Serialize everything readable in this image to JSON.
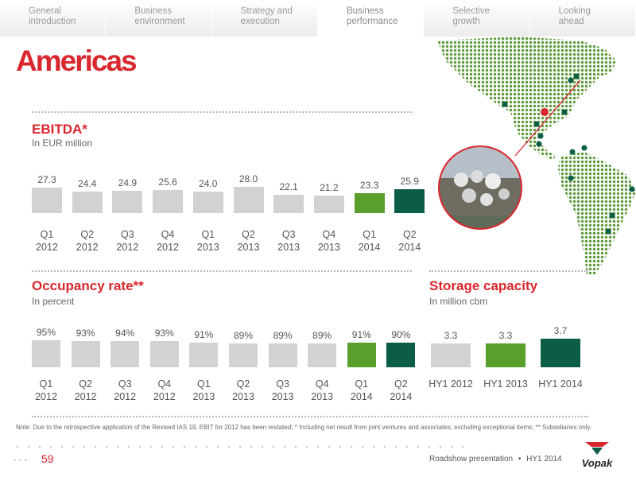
{
  "tabs": [
    {
      "line1": "General",
      "line2": "introduction"
    },
    {
      "line1": "Business",
      "line2": "environment"
    },
    {
      "line1": "Strategy and",
      "line2": "execution"
    },
    {
      "line1": "Business",
      "line2": "performance"
    },
    {
      "line1": "Selective",
      "line2": "growth"
    },
    {
      "line1": "Looking",
      "line2": "ahead"
    }
  ],
  "page_title": "Americas",
  "colors": {
    "grey": "#d2d2d2",
    "green": "#5a9e2b",
    "darkgreen": "#0b5d47",
    "red": "#d9272e"
  },
  "chart_data": [
    {
      "type": "bar",
      "title": "EBITDA*",
      "subtitle": "In EUR million",
      "categories": [
        {
          "q": "Q1",
          "y": "2012"
        },
        {
          "q": "Q2",
          "y": "2012"
        },
        {
          "q": "Q3",
          "y": "2012"
        },
        {
          "q": "Q4",
          "y": "2012"
        },
        {
          "q": "Q1",
          "y": "2013"
        },
        {
          "q": "Q2",
          "y": "2013"
        },
        {
          "q": "Q3",
          "y": "2013"
        },
        {
          "q": "Q4",
          "y": "2013"
        },
        {
          "q": "Q1",
          "y": "2014"
        },
        {
          "q": "Q2",
          "y": "2014"
        }
      ],
      "values": [
        27.3,
        24.4,
        24.9,
        25.6,
        24.0,
        28.0,
        22.1,
        21.2,
        23.3,
        25.9
      ],
      "labels": [
        "27.3",
        "24.4",
        "24.9",
        "25.6",
        "24.0",
        "28.0",
        "22.1",
        "21.2",
        "23.3",
        "25.9"
      ],
      "bar_colors": [
        "grey",
        "grey",
        "grey",
        "grey",
        "grey",
        "grey",
        "grey",
        "grey",
        "green",
        "darkgreen"
      ],
      "ylim": [
        0,
        28
      ]
    },
    {
      "type": "bar",
      "title": "Occupancy rate**",
      "subtitle": "In percent",
      "categories": [
        {
          "q": "Q1",
          "y": "2012"
        },
        {
          "q": "Q2",
          "y": "2012"
        },
        {
          "q": "Q3",
          "y": "2012"
        },
        {
          "q": "Q4",
          "y": "2012"
        },
        {
          "q": "Q1",
          "y": "2013"
        },
        {
          "q": "Q2",
          "y": "2013"
        },
        {
          "q": "Q3",
          "y": "2013"
        },
        {
          "q": "Q4",
          "y": "2013"
        },
        {
          "q": "Q1",
          "y": "2014"
        },
        {
          "q": "Q2",
          "y": "2014"
        }
      ],
      "values": [
        95,
        93,
        94,
        93,
        91,
        89,
        89,
        89,
        91,
        90
      ],
      "labels": [
        "95%",
        "93%",
        "94%",
        "93%",
        "91%",
        "89%",
        "89%",
        "89%",
        "91%",
        "90%"
      ],
      "bar_colors": [
        "grey",
        "grey",
        "grey",
        "grey",
        "grey",
        "grey",
        "grey",
        "grey",
        "green",
        "darkgreen"
      ],
      "ylim": [
        0,
        95
      ]
    },
    {
      "type": "bar",
      "title": "Storage capacity",
      "subtitle": "In million cbm",
      "categories": [
        "HY1 2012",
        "HY1 2013",
        "HY1 2014"
      ],
      "values": [
        3.3,
        3.3,
        3.7
      ],
      "labels": [
        "3.3",
        "3.3",
        "3.7"
      ],
      "bar_colors": [
        "grey",
        "green",
        "darkgreen"
      ],
      "ylim": [
        0,
        3.7
      ]
    }
  ],
  "note": "Note: Due to the retrospective application of the Revised IAS 19, EBIT for 2012 has been restated; * Including net result from joint ventures and associates; excluding exceptional items; ** Subsidiaries only.",
  "footer": {
    "page": "59",
    "presentation": "Roadshow presentation",
    "bullet": "•",
    "period": "HY1 2014",
    "brand": "Vopak"
  },
  "map_icons": [
    "terminal-icon",
    "globe-map",
    "terminal-photo"
  ]
}
